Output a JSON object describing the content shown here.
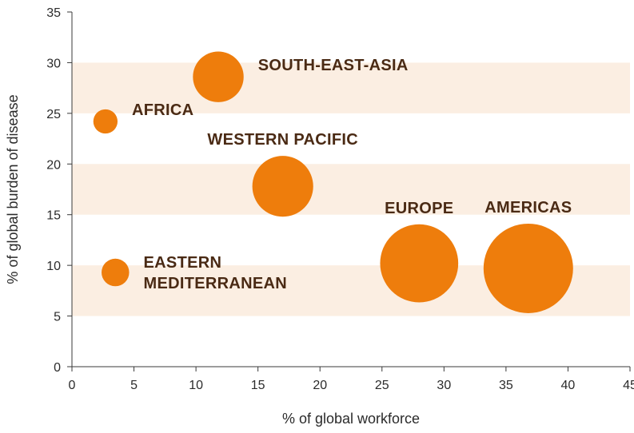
{
  "chart_data": {
    "type": "scatter",
    "title": "",
    "xlabel": "% of global workforce",
    "ylabel": "% of global burden of disease",
    "xlim": [
      0,
      45
    ],
    "ylim": [
      0,
      35
    ],
    "x_ticks": [
      "0",
      "5",
      "10",
      "15",
      "20",
      "25",
      "30",
      "35",
      "40",
      "45"
    ],
    "y_ticks": [
      "0",
      "5",
      "10",
      "15",
      "20",
      "25",
      "30",
      "35"
    ],
    "bubble_size_meaning": "bubble area scales with % of global workforce",
    "band_color": "#fbeee2",
    "marker_color": "#ee7d0c",
    "label_color": "#4a2a14",
    "points": [
      {
        "name": "SOUTH-EAST-ASIA",
        "label_lines": [
          "SOUTH-EAST-ASIA"
        ],
        "x": 11.8,
        "y": 28.6,
        "label_side": "right"
      },
      {
        "name": "AFRICA",
        "label_lines": [
          "AFRICA"
        ],
        "x": 2.7,
        "y": 24.2,
        "label_side": "right"
      },
      {
        "name": "WESTERN PACIFIC",
        "label_lines": [
          "WESTERN PACIFIC"
        ],
        "x": 17.0,
        "y": 17.8,
        "label_side": "top"
      },
      {
        "name": "EASTERN MEDITERRANEAN",
        "label_lines": [
          "EASTERN",
          "MEDITERRANEAN"
        ],
        "x": 3.5,
        "y": 9.3,
        "label_side": "right"
      },
      {
        "name": "EUROPE",
        "label_lines": [
          "EUROPE"
        ],
        "x": 28.0,
        "y": 10.2,
        "label_side": "top"
      },
      {
        "name": "AMERICAS",
        "label_lines": [
          "AMERICAS"
        ],
        "x": 36.8,
        "y": 9.7,
        "label_side": "top"
      }
    ]
  }
}
